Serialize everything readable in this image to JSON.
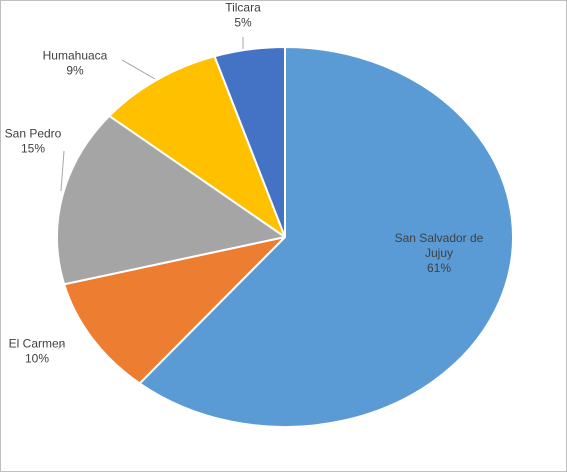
{
  "chart_data": {
    "type": "pie",
    "title": "",
    "slices": [
      {
        "name": "San Salvador de Jujuy",
        "value": 61,
        "value_label": "61%",
        "color": "#5B9BD5"
      },
      {
        "name": "El Carmen",
        "value": 10,
        "value_label": "10%",
        "color": "#ED7D31"
      },
      {
        "name": "San Pedro",
        "value": 15,
        "value_label": "15%",
        "color": "#A5A5A5"
      },
      {
        "name": "Humahuaca",
        "value": 9,
        "value_label": "9%",
        "color": "#FFC000"
      },
      {
        "name": "Tilcara",
        "value": 5,
        "value_label": "5%",
        "color": "#4472C4"
      }
    ],
    "start_angle": "12 o'clock",
    "direction": "clockwise",
    "legend": "none",
    "data_labels": "category name and percentage"
  }
}
